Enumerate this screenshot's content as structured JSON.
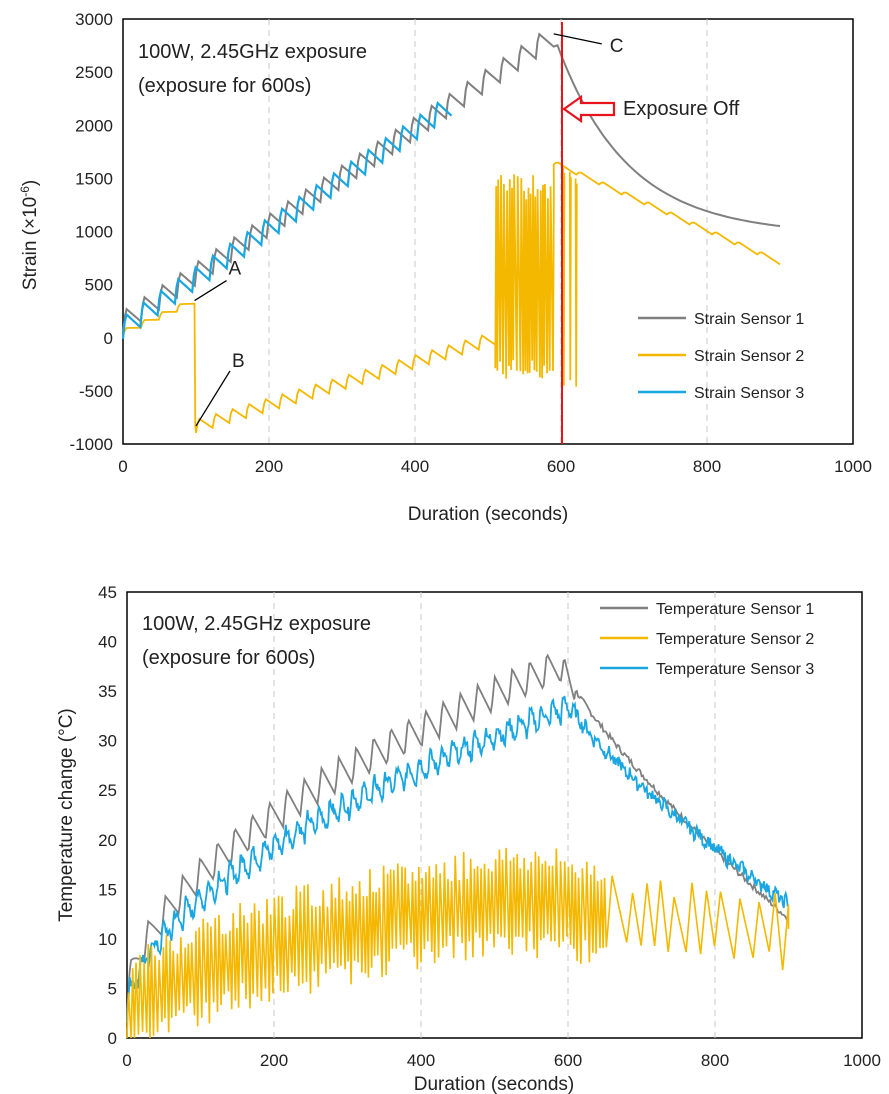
{
  "chart_data": [
    {
      "type": "line",
      "title": "",
      "xlabel": "Duration (seconds)",
      "ylabel": "Strain (×10-6)",
      "xlim": [
        0,
        1000
      ],
      "ylim": [
        -1000,
        3000
      ],
      "xticks": [
        "0",
        "200",
        "400",
        "600",
        "800",
        "1000"
      ],
      "yticks": [
        "3000",
        "2500",
        "2000",
        "1500",
        "1000",
        "500",
        "0",
        "-500",
        "-1000"
      ],
      "grid": "vertical dashed",
      "legend_position": "bottom-right",
      "annotation_lines": [
        "100W, 2.45GHz exposure",
        "(exposure for 600s)"
      ],
      "exposure_off_label": "Exposure Off",
      "exposure_off_x": 600,
      "callouts": [
        {
          "label": "A",
          "x": 98,
          "y": 350
        },
        {
          "label": "B",
          "x": 100,
          "y": -830
        },
        {
          "label": "C",
          "x": 590,
          "y": 2860
        }
      ],
      "series": [
        {
          "name": "Strain Sensor 1",
          "color": "#808080",
          "ramp_start": 0,
          "ramp_end": 590,
          "y_start": 150,
          "y_end": 2850,
          "teeth": 24,
          "amp": 220,
          "decay_end": 900,
          "y_final": 1000
        },
        {
          "name": "Strain Sensor 2",
          "color": "#f5b800",
          "segments": [
            {
              "x": [
                0,
                98
              ],
              "y": [
                50,
                350
              ],
              "teeth": 4,
              "amp": 60
            },
            {
              "x": [
                100,
                510
              ],
              "y": [
                -830,
                0
              ],
              "teeth": 18,
              "amp": 130
            },
            {
              "x": [
                510,
                590
              ],
              "y": [
                -400,
                1550
              ],
              "noisy": true
            },
            {
              "x": [
                590,
                900
              ],
              "y": [
                1650,
                710
              ],
              "teeth": 10,
              "amp": 40
            }
          ]
        },
        {
          "name": "Strain Sensor 3",
          "color": "#1aa6e0",
          "ramp_start": 0,
          "ramp_end": 450,
          "y_start": 100,
          "y_end": 2200,
          "teeth": 19,
          "amp": 220
        }
      ]
    },
    {
      "type": "line",
      "title": "",
      "xlabel": "Duration (seconds)",
      "ylabel": "Temperature change (°C)",
      "xlim": [
        0,
        1000
      ],
      "ylim": [
        0,
        45
      ],
      "xticks": [
        "0",
        "200",
        "400",
        "600",
        "800",
        "1000"
      ],
      "yticks": [
        "45",
        "40",
        "35",
        "30",
        "25",
        "20",
        "15",
        "10",
        "5",
        "0"
      ],
      "grid": "vertical dashed",
      "legend_position": "top-right",
      "annotation_lines": [
        "100W, 2.45GHz exposure",
        "(exposure for 600s)"
      ],
      "series": [
        {
          "name": "Temperature Sensor 1",
          "color": "#808080",
          "peak_x": 590,
          "peak_y": 38,
          "start_y": 4,
          "end_y": 12,
          "teeth": 25,
          "amp": 3.5
        },
        {
          "name": "Temperature Sensor 2",
          "color": "#f5b800",
          "peak_x": 520,
          "peak_y": 15,
          "start_y": 2,
          "end_y": 11,
          "noisy": true,
          "amp": 6
        },
        {
          "name": "Temperature Sensor 3",
          "color": "#1aa6e0",
          "peak_x": 605,
          "peak_y": 35,
          "start_y": 4,
          "end_y": 15,
          "teeth": 40,
          "amp": 2.5
        }
      ]
    }
  ]
}
